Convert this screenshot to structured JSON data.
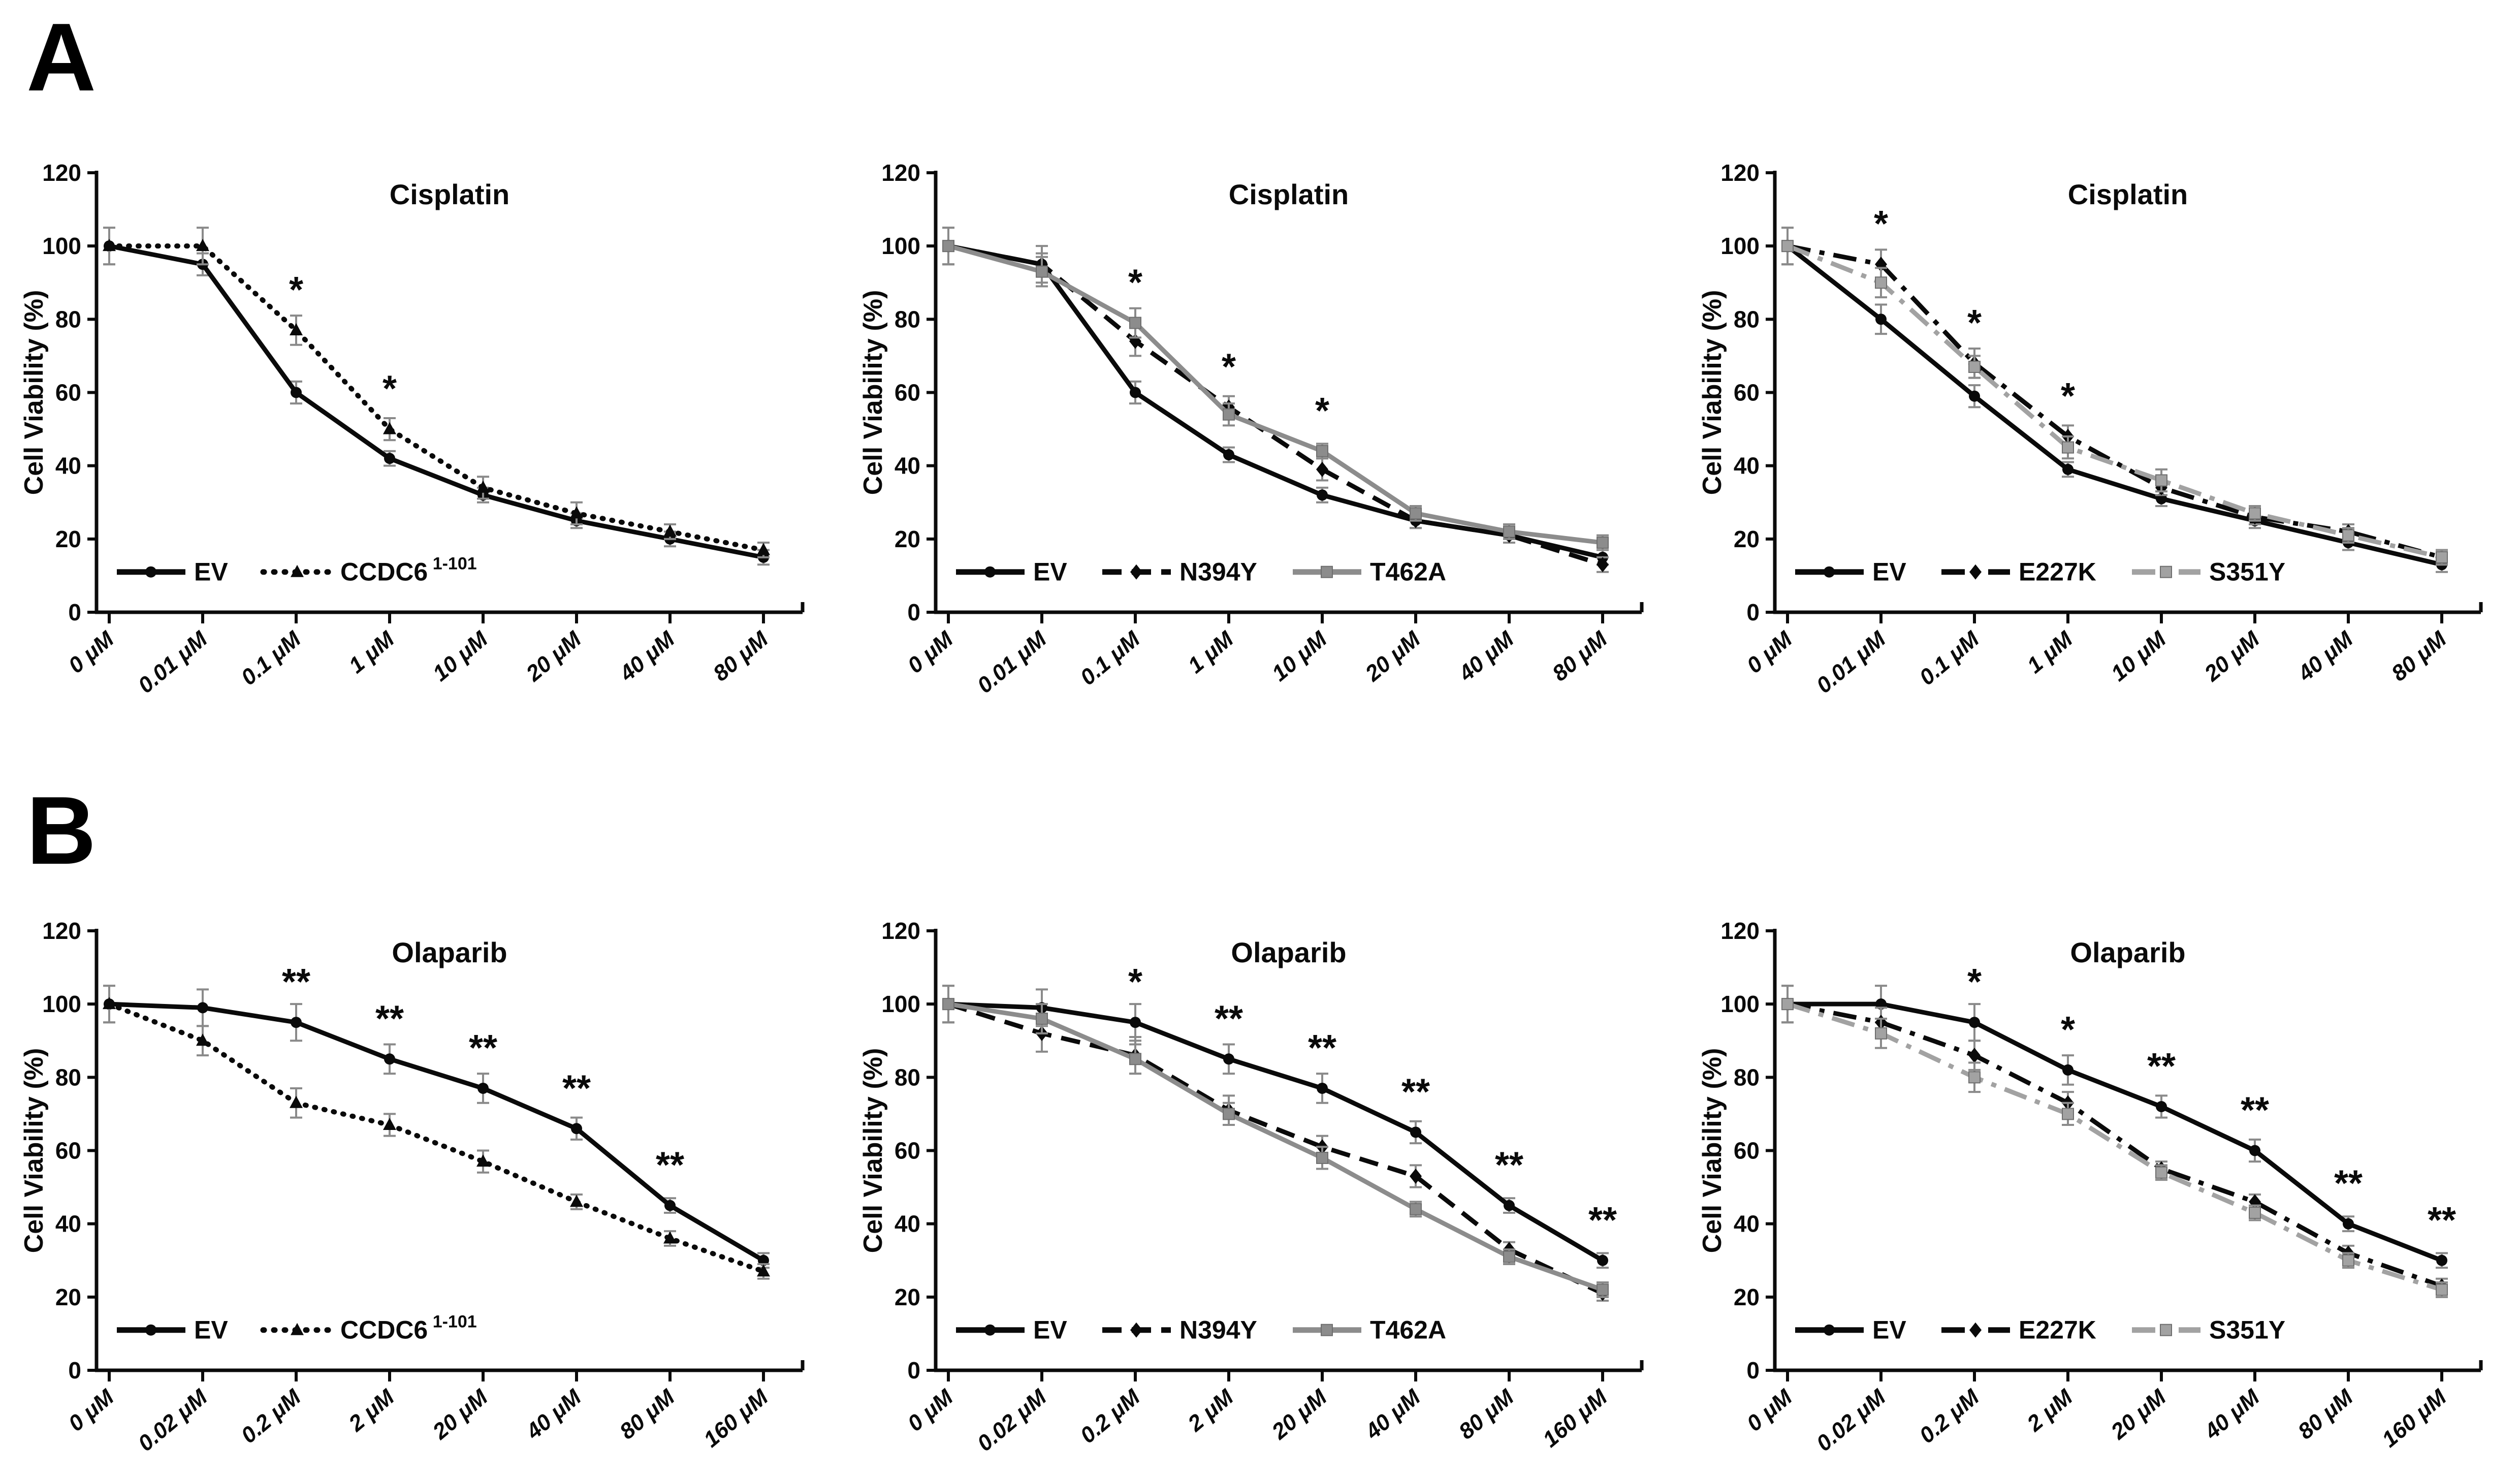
{
  "page": {
    "background": "#ffffff"
  },
  "panels": [
    {
      "label": "A"
    },
    {
      "label": "B"
    }
  ],
  "shared": {
    "ylabel": "Cell Viability (%)",
    "ylim": [
      0,
      120
    ],
    "yticks": [
      0,
      20,
      40,
      60,
      80,
      100,
      120
    ],
    "grid": false,
    "legend_position": "bottom-left"
  },
  "colors": {
    "black": "#0a0a0a",
    "gray": "#8c8c8c",
    "light_gray": "#a2a2a2",
    "error_bar": "#8a8a8a"
  },
  "chart_data": [
    {
      "type": "line",
      "panel": "A",
      "title": "Cisplatin",
      "ylabel": "Cell Viability (%)",
      "categories": [
        "0 μM",
        "0.01 μM",
        "0.1 μM",
        "1 μM",
        "10 μM",
        "20 μM",
        "40 μM",
        "80 μM"
      ],
      "ylim": [
        0,
        120
      ],
      "yticks": [
        0,
        20,
        40,
        60,
        80,
        100,
        120
      ],
      "series": [
        {
          "name": "EV",
          "sup": "",
          "color": "black",
          "line": "solid",
          "marker": "circle",
          "values": [
            100,
            95,
            60,
            42,
            32,
            25,
            20,
            15
          ],
          "errors": [
            5,
            3,
            3,
            2,
            2,
            2,
            2,
            2
          ]
        },
        {
          "name": "CCDC6",
          "sup": "1-101",
          "color": "black",
          "line": "dotted",
          "marker": "triangle",
          "values": [
            100,
            100,
            77,
            50,
            34,
            27,
            22,
            17
          ],
          "errors": [
            5,
            5,
            4,
            3,
            3,
            3,
            2,
            2
          ]
        }
      ],
      "significance": [
        {
          "index": 2,
          "label": "*"
        },
        {
          "index": 3,
          "label": "*"
        }
      ]
    },
    {
      "type": "line",
      "panel": "A",
      "title": "Cisplatin",
      "ylabel": "Cell Viability (%)",
      "categories": [
        "0 μM",
        "0.01 μM",
        "0.1 μM",
        "1 μM",
        "10 μM",
        "20 μM",
        "40 μM",
        "80 μM"
      ],
      "ylim": [
        0,
        120
      ],
      "yticks": [
        0,
        20,
        40,
        60,
        80,
        100,
        120
      ],
      "series": [
        {
          "name": "EV",
          "sup": "",
          "color": "black",
          "line": "solid",
          "marker": "circle",
          "values": [
            100,
            95,
            60,
            43,
            32,
            25,
            21,
            15
          ],
          "errors": [
            5,
            3,
            3,
            2,
            2,
            2,
            2,
            2
          ]
        },
        {
          "name": "N394Y",
          "sup": "",
          "color": "black",
          "line": "dashed",
          "marker": "diamond",
          "values": [
            100,
            95,
            74,
            56,
            39,
            25,
            21,
            13
          ],
          "errors": [
            5,
            5,
            4,
            3,
            3,
            2,
            2,
            2
          ]
        },
        {
          "name": "T462A",
          "sup": "",
          "color": "gray",
          "line": "solid",
          "marker": "square",
          "values": [
            100,
            93,
            79,
            54,
            44,
            27,
            22,
            19
          ],
          "errors": [
            5,
            4,
            4,
            3,
            2,
            2,
            2,
            2
          ]
        }
      ],
      "significance": [
        {
          "index": 2,
          "label": "*"
        },
        {
          "index": 3,
          "label": "*"
        },
        {
          "index": 4,
          "label": "*"
        }
      ]
    },
    {
      "type": "line",
      "panel": "A",
      "title": "Cisplatin",
      "ylabel": "Cell Viability (%)",
      "categories": [
        "0 μM",
        "0.01 μM",
        "0.1 μM",
        "1 μM",
        "10 μM",
        "20 μM",
        "40 μM",
        "80 μM"
      ],
      "ylim": [
        0,
        120
      ],
      "yticks": [
        0,
        20,
        40,
        60,
        80,
        100,
        120
      ],
      "series": [
        {
          "name": "EV",
          "sup": "",
          "color": "black",
          "line": "solid",
          "marker": "circle",
          "values": [
            100,
            80,
            59,
            39,
            31,
            25,
            19,
            13
          ],
          "errors": [
            5,
            4,
            3,
            2,
            2,
            2,
            2,
            2
          ]
        },
        {
          "name": "E227K",
          "sup": "",
          "color": "black",
          "line": "dashdot",
          "marker": "diamond",
          "values": [
            100,
            95,
            68,
            48,
            34,
            26,
            22,
            15
          ],
          "errors": [
            5,
            4,
            4,
            3,
            2,
            2,
            2,
            2
          ]
        },
        {
          "name": "S351Y",
          "sup": "",
          "color": "light_gray",
          "line": "dashdot",
          "marker": "square",
          "values": [
            100,
            90,
            67,
            45,
            36,
            27,
            21,
            15
          ],
          "errors": [
            5,
            4,
            3,
            3,
            3,
            2,
            2,
            2
          ]
        }
      ],
      "significance": [
        {
          "index": 1,
          "label": "*"
        },
        {
          "index": 2,
          "label": "*"
        },
        {
          "index": 3,
          "label": "*"
        }
      ]
    },
    {
      "type": "line",
      "panel": "B",
      "title": "Olaparib",
      "ylabel": "Cell Viability (%)",
      "categories": [
        "0 μM",
        "0.02 μM",
        "0.2 μM",
        "2 μM",
        "20 μM",
        "40 μM",
        "80 μM",
        "160 μM"
      ],
      "ylim": [
        0,
        120
      ],
      "yticks": [
        0,
        20,
        40,
        60,
        80,
        100,
        120
      ],
      "series": [
        {
          "name": "EV",
          "sup": "",
          "color": "black",
          "line": "solid",
          "marker": "circle",
          "values": [
            100,
            99,
            95,
            85,
            77,
            66,
            45,
            30
          ],
          "errors": [
            5,
            5,
            5,
            4,
            4,
            3,
            2,
            2
          ]
        },
        {
          "name": "CCDC6",
          "sup": "1-101",
          "color": "black",
          "line": "dotted",
          "marker": "triangle",
          "values": [
            100,
            90,
            73,
            67,
            57,
            46,
            36,
            27
          ],
          "errors": [
            5,
            4,
            4,
            3,
            3,
            2,
            2,
            2
          ]
        }
      ],
      "significance": [
        {
          "index": 2,
          "label": "**"
        },
        {
          "index": 3,
          "label": "**"
        },
        {
          "index": 4,
          "label": "**"
        },
        {
          "index": 5,
          "label": "**"
        },
        {
          "index": 6,
          "label": "**"
        }
      ]
    },
    {
      "type": "line",
      "panel": "B",
      "title": "Olaparib",
      "ylabel": "Cell Viability (%)",
      "categories": [
        "0 μM",
        "0.02 μM",
        "0.2 μM",
        "2 μM",
        "20 μM",
        "40 μM",
        "80 μM",
        "160 μM"
      ],
      "ylim": [
        0,
        120
      ],
      "yticks": [
        0,
        20,
        40,
        60,
        80,
        100,
        120
      ],
      "series": [
        {
          "name": "EV",
          "sup": "",
          "color": "black",
          "line": "solid",
          "marker": "circle",
          "values": [
            100,
            99,
            95,
            85,
            77,
            65,
            45,
            30
          ],
          "errors": [
            5,
            5,
            5,
            4,
            4,
            3,
            2,
            2
          ]
        },
        {
          "name": "N394Y",
          "sup": "",
          "color": "black",
          "line": "dashed",
          "marker": "diamond",
          "values": [
            100,
            92,
            86,
            71,
            61,
            53,
            33,
            21
          ],
          "errors": [
            5,
            5,
            5,
            4,
            3,
            3,
            2,
            2
          ]
        },
        {
          "name": "T462A",
          "sup": "",
          "color": "gray",
          "line": "solid",
          "marker": "square",
          "values": [
            100,
            96,
            85,
            70,
            58,
            44,
            31,
            22
          ],
          "errors": [
            5,
            4,
            4,
            3,
            3,
            2,
            2,
            2
          ]
        }
      ],
      "significance": [
        {
          "index": 2,
          "label": "*"
        },
        {
          "index": 3,
          "label": "**"
        },
        {
          "index": 4,
          "label": "**"
        },
        {
          "index": 5,
          "label": "**"
        },
        {
          "index": 6,
          "label": "**"
        },
        {
          "index": 7,
          "label": "**"
        }
      ]
    },
    {
      "type": "line",
      "panel": "B",
      "title": "Olaparib",
      "ylabel": "Cell Viability (%)",
      "categories": [
        "0 μM",
        "0.02 μM",
        "0.2 μM",
        "2 μM",
        "20 μM",
        "40 μM",
        "80 μM",
        "160 μM"
      ],
      "ylim": [
        0,
        120
      ],
      "yticks": [
        0,
        20,
        40,
        60,
        80,
        100,
        120
      ],
      "series": [
        {
          "name": "EV",
          "sup": "",
          "color": "black",
          "line": "solid",
          "marker": "circle",
          "values": [
            100,
            100,
            95,
            82,
            72,
            60,
            40,
            30
          ],
          "errors": [
            5,
            5,
            5,
            4,
            3,
            3,
            2,
            2
          ]
        },
        {
          "name": "E227K",
          "sup": "",
          "color": "black",
          "line": "dashdot",
          "marker": "diamond",
          "values": [
            100,
            95,
            86,
            73,
            55,
            46,
            32,
            23
          ],
          "errors": [
            5,
            4,
            4,
            3,
            2,
            2,
            2,
            2
          ]
        },
        {
          "name": "S351Y",
          "sup": "",
          "color": "light_gray",
          "line": "dashdot",
          "marker": "square",
          "values": [
            100,
            92,
            80,
            70,
            54,
            43,
            30,
            22
          ],
          "errors": [
            5,
            4,
            4,
            3,
            2,
            2,
            2,
            2
          ]
        }
      ],
      "significance": [
        {
          "index": 2,
          "label": "*"
        },
        {
          "index": 3,
          "label": "*"
        },
        {
          "index": 4,
          "label": "**"
        },
        {
          "index": 5,
          "label": "**"
        },
        {
          "index": 6,
          "label": "**"
        },
        {
          "index": 7,
          "label": "**"
        }
      ]
    }
  ]
}
